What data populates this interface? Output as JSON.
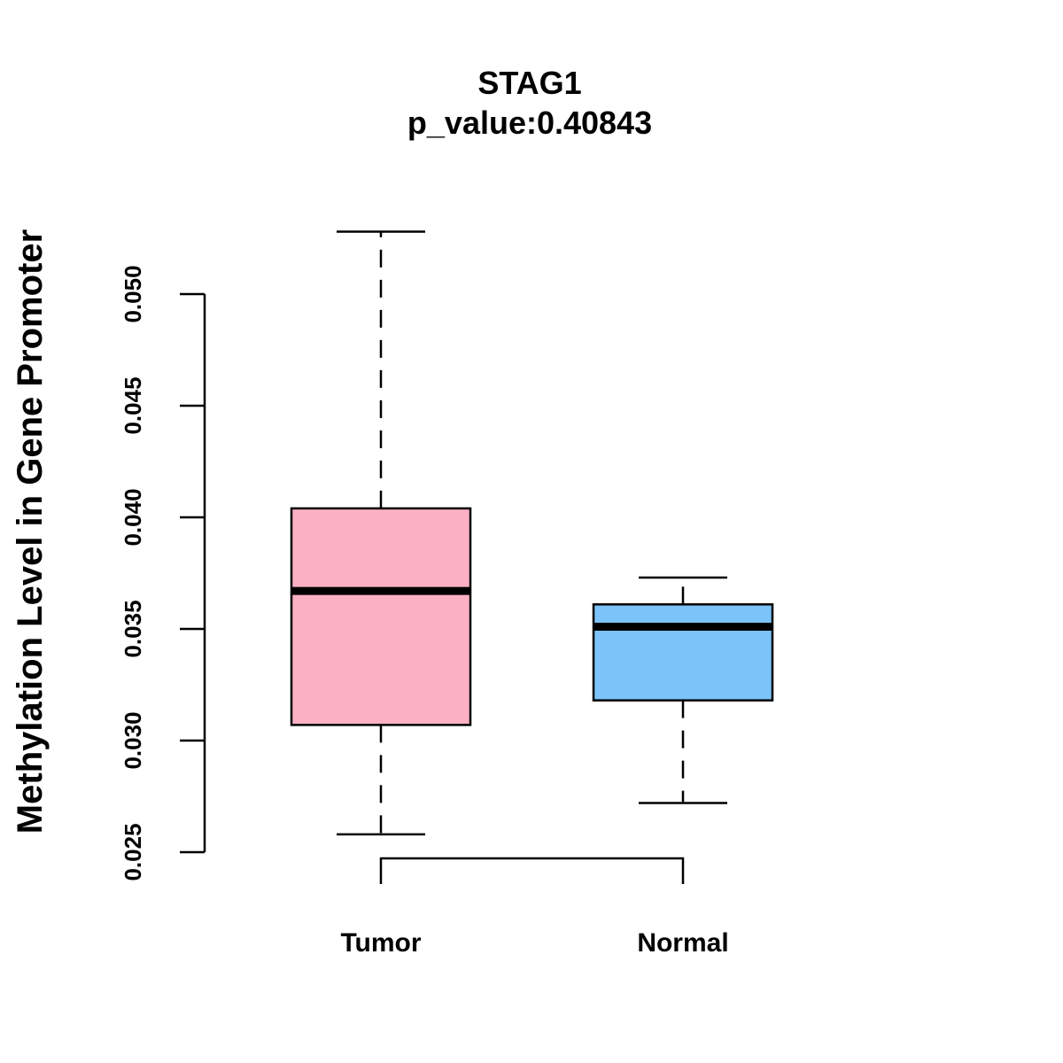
{
  "chart_data": {
    "type": "box",
    "title": "STAG1",
    "subtitle": "p_value:0.40843",
    "xlabel": "",
    "ylabel": "Methylation Level in Gene Promoter",
    "ylim": [
      0.025,
      0.05
    ],
    "yticks": [
      0.025,
      0.03,
      0.035,
      0.04,
      0.045,
      0.05
    ],
    "ytick_labels": [
      "0.025",
      "0.030",
      "0.035",
      "0.040",
      "0.045",
      "0.050"
    ],
    "categories": [
      "Tumor",
      "Normal"
    ],
    "series": [
      {
        "name": "Tumor",
        "min": 0.0258,
        "q1": 0.0307,
        "median": 0.0367,
        "q3": 0.0404,
        "max": 0.0528,
        "color": "#FBB1C3"
      },
      {
        "name": "Normal",
        "min": 0.0272,
        "q1": 0.0318,
        "median": 0.0351,
        "q3": 0.0361,
        "max": 0.0373,
        "color": "#7BC3F8"
      }
    ],
    "comparison_bracket": [
      "Tumor",
      "Normal"
    ]
  }
}
